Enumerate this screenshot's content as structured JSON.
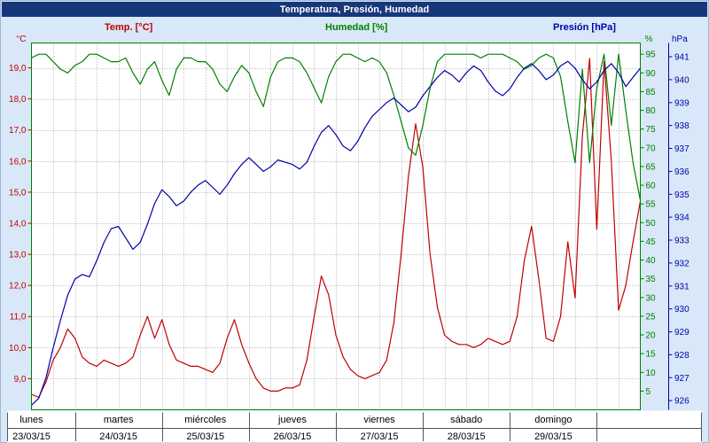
{
  "title_bar": {
    "title": "Temperatura, Presión, Humedad"
  },
  "legend": [
    {
      "label": "Temp. [°C]",
      "color": "#c00000"
    },
    {
      "label": "Humedad [%]",
      "color": "#008000"
    },
    {
      "label": "Presión [hPa]",
      "color": "#0000a8"
    }
  ],
  "chart_data": {
    "type": "line",
    "title": "Temperatura, Presión, Humedad",
    "x_axis": {
      "days": [
        {
          "name": "lunes",
          "date": "23/03/15"
        },
        {
          "name": "martes",
          "date": "24/03/15"
        },
        {
          "name": "miércoles",
          "date": "25/03/15"
        },
        {
          "name": "jueves",
          "date": "26/03/15"
        },
        {
          "name": "viernes",
          "date": "27/03/15"
        },
        {
          "name": "sábado",
          "date": "28/03/15"
        },
        {
          "name": "domingo",
          "date": "29/03/15"
        }
      ],
      "samples_per_day": 12,
      "sample_interval_hours": 2
    },
    "axes": {
      "temperature": {
        "unit": "°C",
        "color": "#c00000",
        "min": 8.0,
        "max": 19.8,
        "tick_min": 9,
        "tick_max": 19,
        "tick_step": 1,
        "decimal_comma": true
      },
      "humidity": {
        "unit": "%",
        "color": "#008000",
        "min": 0,
        "max": 98,
        "tick_min": 5,
        "tick_max": 95,
        "tick_step": 5
      },
      "pressure": {
        "unit": "hPa",
        "color": "#0000a8",
        "min": 925.6,
        "max": 941.6,
        "tick_min": 926,
        "tick_max": 941,
        "tick_step": 1
      }
    },
    "grid": {
      "vertical_every_hours": 6,
      "horizontal_at_temp_ticks": true,
      "color": "#aaaaaa"
    },
    "series": [
      {
        "name": "Temp. [°C]",
        "axis": "temperature",
        "color": "#c00000",
        "values": [
          8.5,
          8.4,
          8.9,
          9.6,
          10.0,
          10.6,
          10.3,
          9.7,
          9.5,
          9.4,
          9.6,
          9.5,
          9.4,
          9.5,
          9.7,
          10.4,
          11.0,
          10.3,
          10.9,
          10.1,
          9.6,
          9.5,
          9.4,
          9.4,
          9.3,
          9.2,
          9.5,
          10.3,
          10.9,
          10.1,
          9.5,
          9.0,
          8.7,
          8.6,
          8.6,
          8.7,
          8.7,
          8.8,
          9.6,
          11.0,
          12.3,
          11.7,
          10.4,
          9.7,
          9.3,
          9.1,
          9.0,
          9.1,
          9.2,
          9.6,
          10.8,
          13.0,
          15.5,
          17.2,
          15.8,
          13.0,
          11.3,
          10.4,
          10.2,
          10.1,
          10.1,
          10.0,
          10.1,
          10.3,
          10.2,
          10.1,
          10.2,
          11.0,
          12.8,
          13.9,
          12.2,
          10.3,
          10.2,
          11.0,
          13.4,
          11.6,
          16.8,
          19.3,
          13.8,
          19.2,
          16.0,
          11.2,
          12.0,
          13.4,
          14.7
        ]
      },
      {
        "name": "Humedad [%]",
        "axis": "humidity",
        "color": "#008000",
        "values": [
          94,
          95,
          95,
          93,
          91,
          90,
          92,
          93,
          95,
          95,
          94,
          93,
          93,
          94,
          90,
          87,
          91,
          93,
          88,
          84,
          91,
          94,
          94,
          93,
          93,
          91,
          87,
          85,
          89,
          92,
          90,
          85,
          81,
          89,
          93,
          94,
          94,
          93,
          90,
          86,
          82,
          89,
          93,
          95,
          95,
          94,
          93,
          94,
          93,
          90,
          84,
          77,
          70,
          68,
          76,
          86,
          93,
          95,
          95,
          95,
          95,
          95,
          94,
          95,
          95,
          95,
          94,
          93,
          91,
          92,
          94,
          95,
          94,
          89,
          77,
          66,
          91,
          66,
          86,
          95,
          76,
          95,
          80,
          66,
          56
        ]
      },
      {
        "name": "Presión [hPa]",
        "axis": "pressure",
        "color": "#0000a8",
        "values": [
          925.8,
          926.1,
          927.0,
          928.3,
          929.5,
          930.6,
          931.3,
          931.5,
          931.4,
          932.1,
          932.9,
          933.5,
          933.6,
          933.1,
          932.6,
          932.9,
          933.7,
          934.6,
          935.2,
          934.9,
          934.5,
          934.7,
          935.1,
          935.4,
          935.6,
          935.3,
          935.0,
          935.4,
          935.9,
          936.3,
          936.6,
          936.3,
          936.0,
          936.2,
          936.5,
          936.4,
          936.3,
          936.1,
          936.4,
          937.1,
          937.7,
          938.0,
          937.6,
          937.1,
          936.9,
          937.3,
          937.9,
          938.4,
          938.7,
          939.0,
          939.2,
          938.9,
          938.6,
          938.8,
          939.3,
          939.7,
          940.1,
          940.4,
          940.2,
          939.9,
          940.3,
          940.6,
          940.4,
          939.9,
          939.5,
          939.3,
          939.6,
          940.1,
          940.5,
          940.7,
          940.4,
          940.0,
          940.2,
          940.6,
          940.8,
          940.5,
          940.0,
          939.6,
          939.9,
          940.4,
          940.7,
          940.3,
          939.7,
          940.1,
          940.5
        ]
      }
    ]
  }
}
